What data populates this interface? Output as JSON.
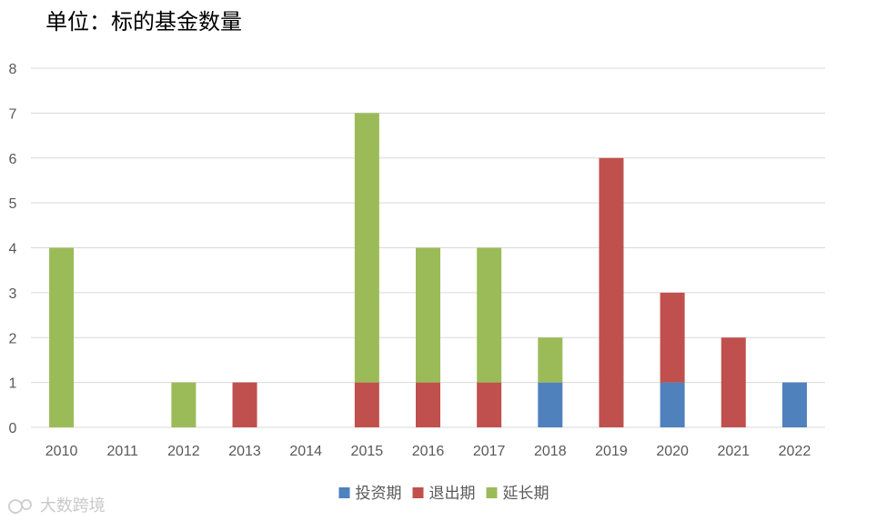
{
  "chart_data": {
    "type": "bar",
    "stacked": true,
    "title": "单位：标的基金数量",
    "categories": [
      "2010",
      "2011",
      "2012",
      "2013",
      "2014",
      "2015",
      "2016",
      "2017",
      "2018",
      "2019",
      "2020",
      "2021",
      "2022"
    ],
    "series": [
      {
        "name": "投资期",
        "color": "#4f81bd",
        "values": [
          0,
          0,
          0,
          0,
          0,
          0,
          0,
          0,
          1,
          0,
          1,
          0,
          1
        ]
      },
      {
        "name": "退出期",
        "color": "#c0504d",
        "values": [
          0,
          0,
          0,
          1,
          0,
          1,
          1,
          1,
          0,
          6,
          2,
          2,
          0
        ]
      },
      {
        "name": "延长期",
        "color": "#9bbb59",
        "values": [
          4,
          0,
          1,
          0,
          0,
          6,
          3,
          3,
          1,
          0,
          0,
          0,
          0
        ]
      }
    ],
    "ylim": [
      0,
      8
    ],
    "yticks": [
      0,
      1,
      2,
      3,
      4,
      5,
      6,
      7,
      8
    ],
    "grid": true,
    "legend_position": "bottom"
  },
  "watermark": "大数跨境"
}
